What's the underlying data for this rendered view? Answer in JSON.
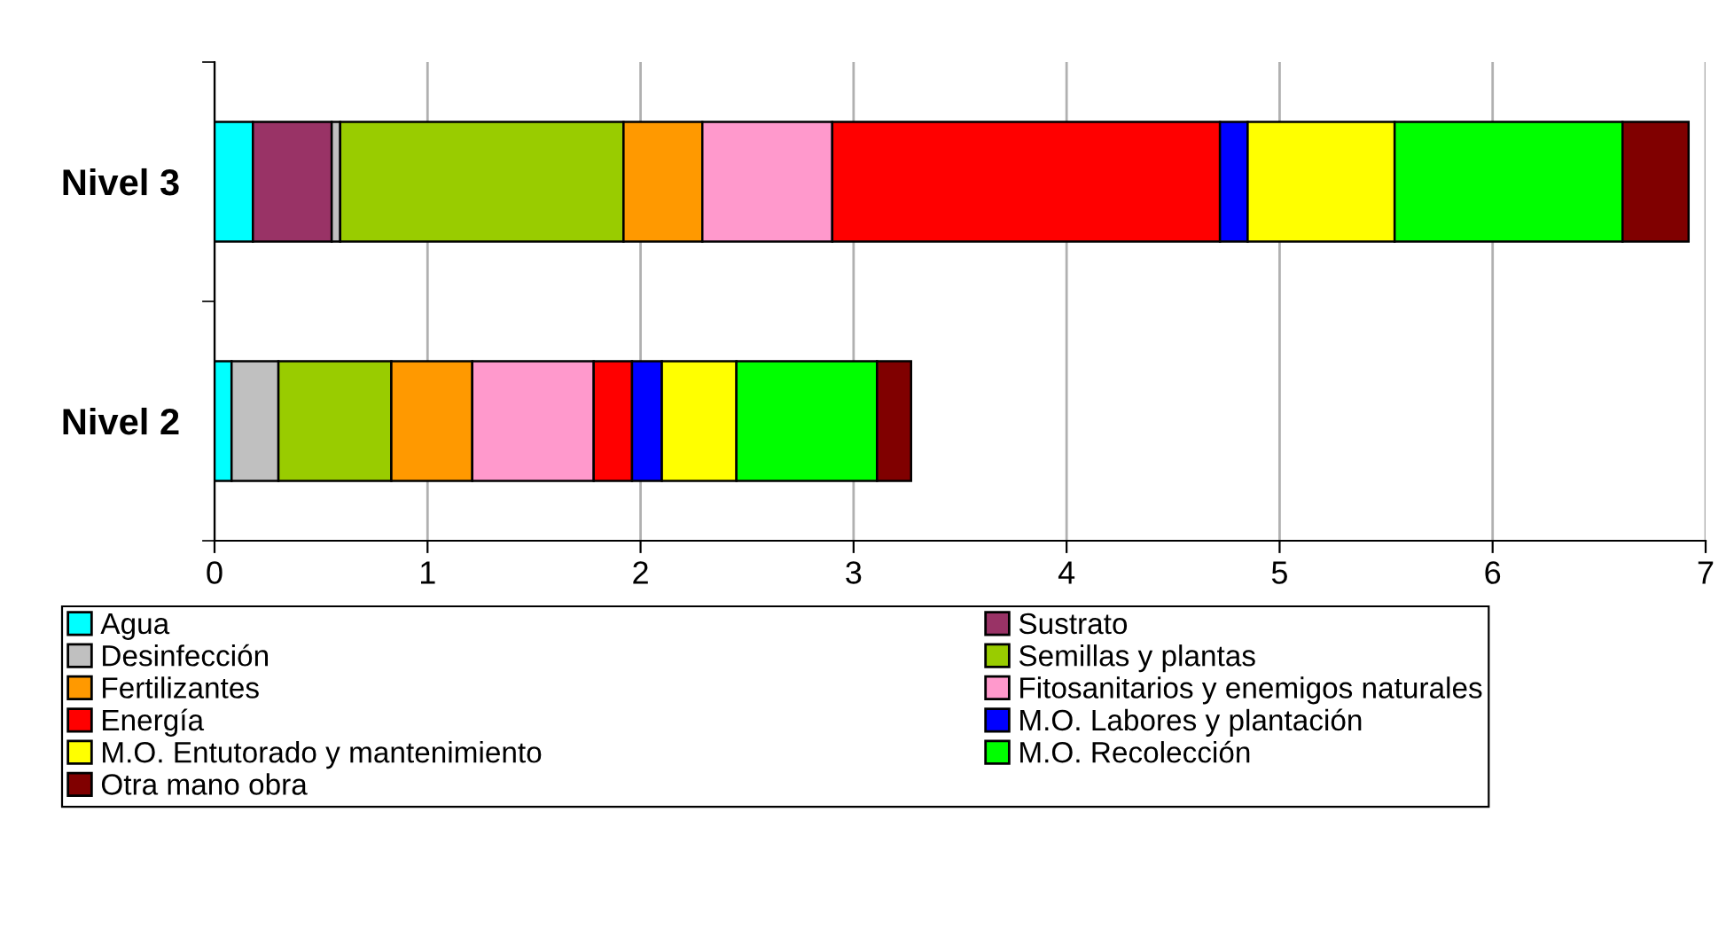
{
  "chart_data": {
    "type": "bar",
    "orientation": "horizontal",
    "stacked": true,
    "categories": [
      "Nivel 3",
      "Nivel 2"
    ],
    "series": [
      {
        "name": "Agua",
        "color": "#00ffff",
        "values": [
          0.18,
          0.08
        ]
      },
      {
        "name": "Sustrato",
        "color": "#993366",
        "values": [
          0.37,
          null
        ]
      },
      {
        "name": "Desinfección",
        "color": "#c0c0c0",
        "values": [
          0.04,
          0.22
        ]
      },
      {
        "name": "Semillas y plantas",
        "color": "#99cc00",
        "values": [
          1.33,
          0.53
        ]
      },
      {
        "name": "Fertilizantes",
        "color": "#ff9900",
        "values": [
          0.37,
          0.38
        ]
      },
      {
        "name": "Fitosanitarios y enemigos naturales",
        "color": "#ff99cc",
        "values": [
          0.61,
          0.57
        ]
      },
      {
        "name": "Energía",
        "color": "#ff0000",
        "values": [
          1.82,
          0.18
        ]
      },
      {
        "name": "M.O. Labores y plantación",
        "color": "#0000ff",
        "values": [
          0.13,
          0.14
        ]
      },
      {
        "name": "M.O. Entutorado y mantenimiento",
        "color": "#ffff00",
        "values": [
          0.69,
          0.35
        ]
      },
      {
        "name": "M.O. Recolección",
        "color": "#00ff00",
        "values": [
          1.07,
          0.66
        ]
      },
      {
        "name": "Otra mano obra",
        "color": "#800000",
        "values": [
          0.31,
          0.16
        ]
      }
    ],
    "xlim": [
      0,
      7
    ],
    "xticks": [
      0,
      1,
      2,
      3,
      4,
      5,
      6,
      7
    ],
    "grid": "x",
    "legend": "bottom"
  }
}
